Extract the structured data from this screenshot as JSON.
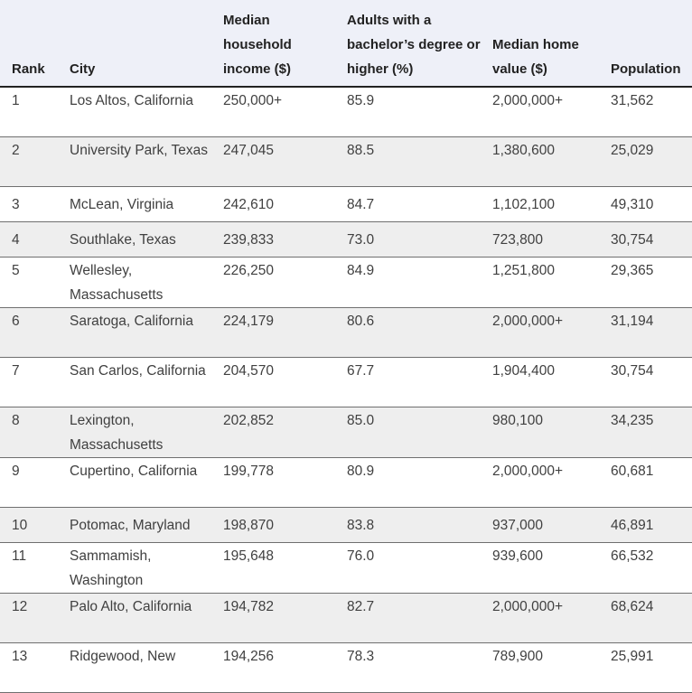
{
  "table": {
    "headers": {
      "rank": "Rank",
      "city": "City",
      "income": "Median household income ($)",
      "education": "Adults with a bachelor’s degree or higher (%)",
      "home": "Median home value ($)",
      "population": "Population"
    },
    "rows": [
      {
        "rank": "1",
        "city": "Los Altos, California",
        "income": "250,000+",
        "education": "85.9",
        "home": "2,000,000+",
        "population": "31,562"
      },
      {
        "rank": "2",
        "city": "University Park, Texas",
        "income": "247,045",
        "education": "88.5",
        "home": "1,380,600",
        "population": "25,029"
      },
      {
        "rank": "3",
        "city": "McLean, Virginia",
        "income": "242,610",
        "education": "84.7",
        "home": "1,102,100",
        "population": "49,310"
      },
      {
        "rank": "4",
        "city": "Southlake, Texas",
        "income": "239,833",
        "education": "73.0",
        "home": "723,800",
        "population": "30,754"
      },
      {
        "rank": "5",
        "city": "Wellesley, Massachusetts",
        "income": "226,250",
        "education": "84.9",
        "home": "1,251,800",
        "population": "29,365"
      },
      {
        "rank": "6",
        "city": "Saratoga, California",
        "income": "224,179",
        "education": "80.6",
        "home": "2,000,000+",
        "population": "31,194"
      },
      {
        "rank": "7",
        "city": "San Carlos, California",
        "income": "204,570",
        "education": "67.7",
        "home": "1,904,400",
        "population": "30,754"
      },
      {
        "rank": "8",
        "city": "Lexington, Massachusetts",
        "income": "202,852",
        "education": "85.0",
        "home": "980,100",
        "population": "34,235"
      },
      {
        "rank": "9",
        "city": "Cupertino, California",
        "income": "199,778",
        "education": "80.9",
        "home": "2,000,000+",
        "population": "60,681"
      },
      {
        "rank": "10",
        "city": "Potomac, Maryland",
        "income": "198,870",
        "education": "83.8",
        "home": "937,000",
        "population": "46,891"
      },
      {
        "rank": "11",
        "city": "Sammamish, Washington",
        "income": "195,648",
        "education": "76.0",
        "home": "939,600",
        "population": "66,532"
      },
      {
        "rank": "12",
        "city": "Palo Alto, California",
        "income": "194,782",
        "education": "82.7",
        "home": "2,000,000+",
        "population": "68,624"
      },
      {
        "rank": "13",
        "city": "Ridgewood, New",
        "income": "194,256",
        "education": "78.3",
        "home": "789,900",
        "population": "25,991"
      }
    ]
  }
}
